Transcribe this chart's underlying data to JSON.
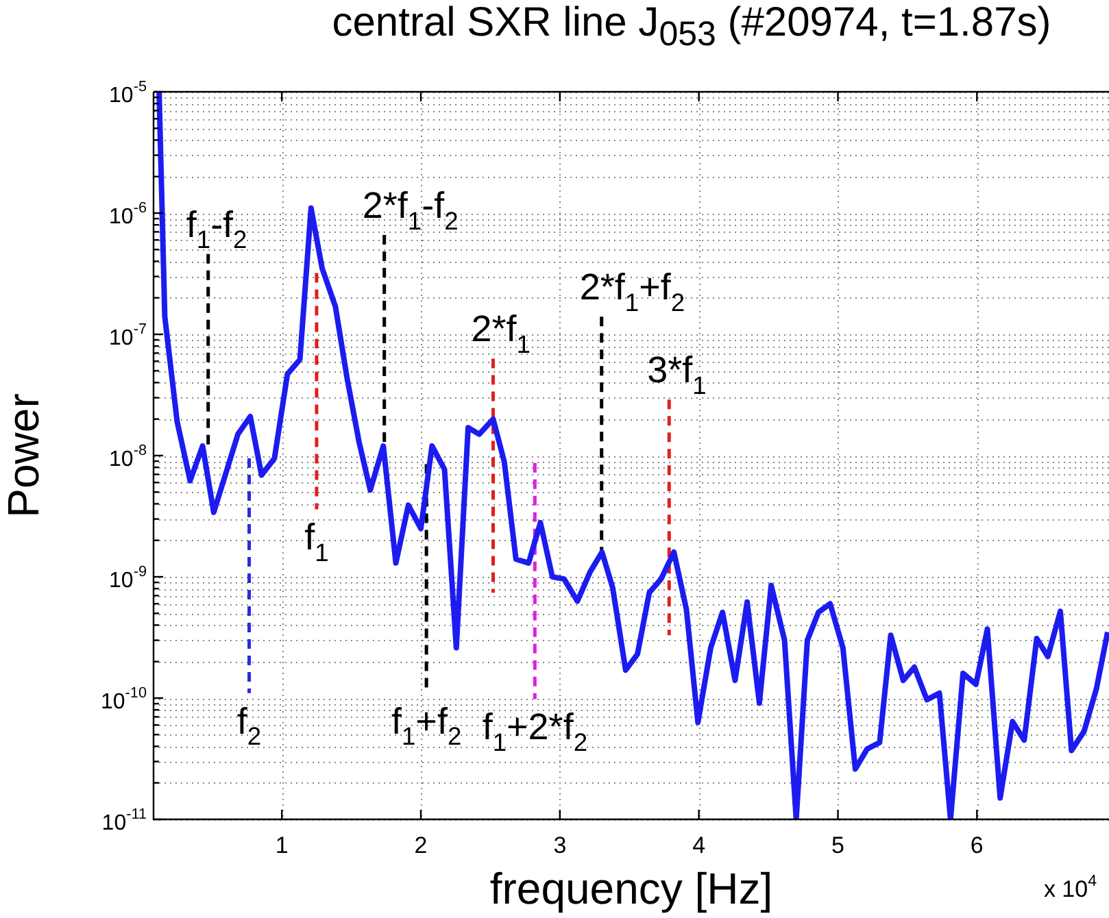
{
  "chart_data": {
    "type": "line",
    "title": "central SXR line J$_{053}$ (#20974, t=1.87s)",
    "xlabel": "frequency [Hz]",
    "ylabel": "Power",
    "log": "y",
    "grid": true,
    "marker": "none",
    "line_style": "solid",
    "xlim": [
      0.077,
      6.95
    ],
    "ylim": [
      1e-11,
      1e-05
    ],
    "xticks": [
      1,
      2,
      3,
      4,
      5,
      6
    ],
    "yticks": [
      {
        "value": 1e-11,
        "label": "10$^{-11}$"
      },
      {
        "value": 2e-11,
        "label": null
      },
      {
        "value": 3e-11,
        "label": null
      },
      {
        "value": 4e-11,
        "label": null
      },
      {
        "value": 5e-11,
        "label": null
      },
      {
        "value": 6e-11,
        "label": null
      },
      {
        "value": 7e-11,
        "label": null
      },
      {
        "value": 8e-11,
        "label": null
      },
      {
        "value": 9e-11,
        "label": null
      },
      {
        "value": 1e-10,
        "label": "10$^{-10}$"
      },
      {
        "value": 2e-10,
        "label": null
      },
      {
        "value": 3e-10,
        "label": null
      },
      {
        "value": 4e-10,
        "label": null
      },
      {
        "value": 5e-10,
        "label": null
      },
      {
        "value": 6e-10,
        "label": null
      },
      {
        "value": 7e-10,
        "label": null
      },
      {
        "value": 8e-10,
        "label": null
      },
      {
        "value": 9e-10,
        "label": null
      },
      {
        "value": 1e-09,
        "label": "10$^{-9}$"
      },
      {
        "value": 2e-09,
        "label": null
      },
      {
        "value": 3e-09,
        "label": null
      },
      {
        "value": 4e-09,
        "label": null
      },
      {
        "value": 5e-09,
        "label": null
      },
      {
        "value": 6e-09,
        "label": null
      },
      {
        "value": 7e-09,
        "label": null
      },
      {
        "value": 8e-09,
        "label": null
      },
      {
        "value": 9e-09,
        "label": null
      },
      {
        "value": 1e-08,
        "label": "10$^{-8}$"
      },
      {
        "value": 2e-08,
        "label": null
      },
      {
        "value": 3e-08,
        "label": null
      },
      {
        "value": 4e-08,
        "label": null
      },
      {
        "value": 5e-08,
        "label": null
      },
      {
        "value": 6e-08,
        "label": null
      },
      {
        "value": 7e-08,
        "label": null
      },
      {
        "value": 8e-08,
        "label": null
      },
      {
        "value": 9e-08,
        "label": null
      },
      {
        "value": 1e-07,
        "label": "10$^{-7}$"
      },
      {
        "value": 2e-07,
        "label": null
      },
      {
        "value": 3e-07,
        "label": null
      },
      {
        "value": 4e-07,
        "label": null
      },
      {
        "value": 5e-07,
        "label": null
      },
      {
        "value": 6e-07,
        "label": null
      },
      {
        "value": 7e-07,
        "label": null
      },
      {
        "value": 8e-07,
        "label": null
      },
      {
        "value": 9e-07,
        "label": null
      },
      {
        "value": 1e-06,
        "label": "10$^{-6}$"
      },
      {
        "value": 2e-06,
        "label": null
      },
      {
        "value": 3e-06,
        "label": null
      },
      {
        "value": 4e-06,
        "label": null
      },
      {
        "value": 5e-06,
        "label": null
      },
      {
        "value": 6e-06,
        "label": null
      },
      {
        "value": 7e-06,
        "label": null
      },
      {
        "value": 8e-06,
        "label": null
      },
      {
        "value": 9e-06,
        "label": null
      },
      {
        "value": 1e-05,
        "label": "10$^{-5}$"
      }
    ],
    "series": [
      {
        "color": "#1c1cf0",
        "x": [
          0.117,
          0.158,
          0.247,
          0.34,
          0.43,
          0.51,
          0.684,
          0.773,
          0.854,
          0.947,
          1.04,
          1.13,
          1.21,
          1.29,
          1.385,
          1.47,
          1.555,
          1.636,
          1.73,
          1.82,
          1.91,
          2.0,
          2.08,
          2.17,
          2.255,
          2.34,
          2.42,
          2.52,
          2.6,
          2.684,
          2.775,
          2.86,
          2.946,
          3.03,
          3.126,
          3.218,
          3.303,
          3.38,
          3.473,
          3.558,
          3.643,
          3.728,
          3.82,
          3.91,
          3.993,
          4.085,
          4.17,
          4.26,
          4.347,
          4.435,
          4.52,
          4.616,
          4.7,
          4.78,
          4.86,
          4.944,
          5.036,
          5.125,
          5.21,
          5.3,
          5.38,
          5.47,
          5.55,
          5.64,
          5.73,
          5.81,
          5.9,
          5.993,
          6.075,
          6.167,
          6.256,
          6.34,
          6.43,
          6.51,
          6.6,
          6.68,
          6.77,
          6.86,
          6.94
        ],
        "values": [
          1e-05,
          1.4e-07,
          1.9e-08,
          6.2e-09,
          1.2e-08,
          3.4e-09,
          1.5e-08,
          2.1e-08,
          6.9e-09,
          9.5e-09,
          4.7e-08,
          6.2e-08,
          1.1e-06,
          3.5e-07,
          1.7e-07,
          4.3e-08,
          1.3e-08,
          5.2e-09,
          1.2e-08,
          1.3e-09,
          3.9e-09,
          2.5e-09,
          1.2e-08,
          7.7e-09,
          2.6e-10,
          1.7e-08,
          1.5e-08,
          2e-08,
          8.9e-09,
          1.4e-09,
          1.3e-09,
          2.8e-09,
          1e-09,
          9.6e-10,
          6.3e-10,
          1.1e-09,
          1.6e-09,
          8.1e-10,
          1.7e-10,
          2.3e-10,
          7.4e-10,
          9.6e-10,
          1.6e-09,
          5.4e-10,
          6.3e-11,
          2.6e-10,
          5.1e-10,
          1.4e-10,
          6.2e-10,
          9.1e-11,
          8.5e-10,
          3e-10,
          1e-11,
          3e-10,
          5.1e-10,
          6e-10,
          2.6e-10,
          2.6e-11,
          3.8e-11,
          4.3e-11,
          3.3e-10,
          1.4e-10,
          1.8e-10,
          9.7e-11,
          1.1e-10,
          1e-11,
          1.6e-10,
          1.3e-10,
          3.7e-10,
          1.5e-11,
          6.4e-11,
          4.5e-11,
          3.1e-10,
          2.2e-10,
          5.2e-10,
          3.7e-11,
          5.3e-11,
          1.2e-10,
          3.5e-10
        ]
      },
      {
        "color": "#000000",
        "line_style": "dashed",
        "x": [
          0.47,
          0.47
        ],
        "values": [
          4.6e-07,
          1.2e-08
        ]
      },
      {
        "color": "#2a2ae0",
        "line_style": "dashed",
        "x": [
          0.765,
          0.765
        ],
        "values": [
          9.5e-09,
          1.1e-10
        ]
      },
      {
        "color": "#e02020",
        "line_style": "dashed",
        "x": [
          1.25,
          1.25
        ],
        "values": [
          3.2e-07,
          3.6e-09
        ]
      },
      {
        "color": "#000000",
        "line_style": "dashed",
        "x": [
          1.737,
          1.737
        ],
        "values": [
          6.6e-07,
          1.2e-08
        ]
      },
      {
        "color": "#000000",
        "line_style": "dashed",
        "x": [
          2.04,
          2.04
        ],
        "values": [
          8.5e-09,
          1.1e-10
        ]
      },
      {
        "color": "#e02020",
        "line_style": "dashed",
        "x": [
          2.52,
          2.52
        ],
        "values": [
          6.3e-08,
          7.4e-10
        ]
      },
      {
        "color": "#e020e0",
        "line_style": "dashed",
        "x": [
          2.82,
          2.82
        ],
        "values": [
          8.7e-09,
          9.8e-11
        ]
      },
      {
        "color": "#000000",
        "line_style": "dashed",
        "x": [
          3.3,
          3.3
        ],
        "values": [
          1.4e-07,
          1.6e-09
        ]
      },
      {
        "color": "#e02020",
        "line_style": "dashed",
        "x": [
          3.786,
          3.786
        ],
        "values": [
          2.9e-08,
          3.3e-10
        ]
      }
    ],
    "annotations": [
      {
        "text": "f$_{1}$-f$_{2}$",
        "x": 0.47,
        "y": 4.6e-07
      },
      {
        "text": "f$_{2}$",
        "x": 0.765,
        "y": 1.1e-10
      },
      {
        "text": "f$_{1}$",
        "x": 1.25,
        "y": 3.6e-09
      },
      {
        "text": "2*f$_{1}$-f$_{2}$",
        "x": 1.737,
        "y": 6.6e-07
      },
      {
        "text": "f$_{1}$+f$_{2}$",
        "x": 2.04,
        "y": 1.1e-10
      },
      {
        "text": "2*f$_{1}$",
        "x": 2.52,
        "y": 6.3e-08
      },
      {
        "text": "f$_{1}$+2*f$_{2}$",
        "x": 2.82,
        "y": 9.8e-11
      },
      {
        "text": "2*f$_{1}$+f$_{2}$",
        "x": 3.3,
        "y": 1.4e-07
      },
      {
        "text": "3*f$_{1}$",
        "x": 3.786,
        "y": 2.9e-08
      },
      "x 10$^{4}$"
    ]
  }
}
